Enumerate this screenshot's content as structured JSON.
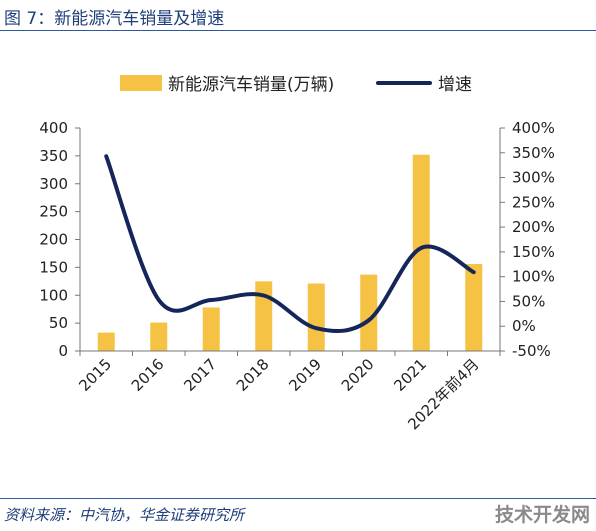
{
  "figure": {
    "title": "图 7：新能源汽车销量及增速",
    "source": "资料来源：中汽协，华金证券研究所",
    "watermark": "技术开发网"
  },
  "colors": {
    "bar": "#F6C244",
    "line": "#14265A",
    "rule": "#2D5AA0",
    "title": "#1D3E7A"
  },
  "chart_data": {
    "type": "bar+line",
    "categories": [
      "2015",
      "2016",
      "2017",
      "2018",
      "2019",
      "2020",
      "2021",
      "2022年前4月"
    ],
    "series": [
      {
        "name": "新能源汽车销量(万辆)",
        "type": "bar",
        "axis": "left",
        "values": [
          33,
          51,
          78,
          125,
          121,
          137,
          352,
          156
        ]
      },
      {
        "name": "增速",
        "type": "line",
        "axis": "right",
        "unit": "%",
        "values": [
          343,
          53,
          53,
          62,
          -4,
          12,
          158,
          109
        ]
      }
    ],
    "left_axis": {
      "min": 0,
      "max": 400,
      "ticks": [
        "0",
        "50",
        "100",
        "150",
        "200",
        "250",
        "300",
        "350",
        "400"
      ]
    },
    "right_axis": {
      "min": -50,
      "max": 400,
      "ticks": [
        "-50%",
        "0%",
        "50%",
        "100%",
        "150%",
        "200%",
        "250%",
        "300%",
        "350%",
        "400%"
      ]
    },
    "legend": "top",
    "grid": false
  }
}
